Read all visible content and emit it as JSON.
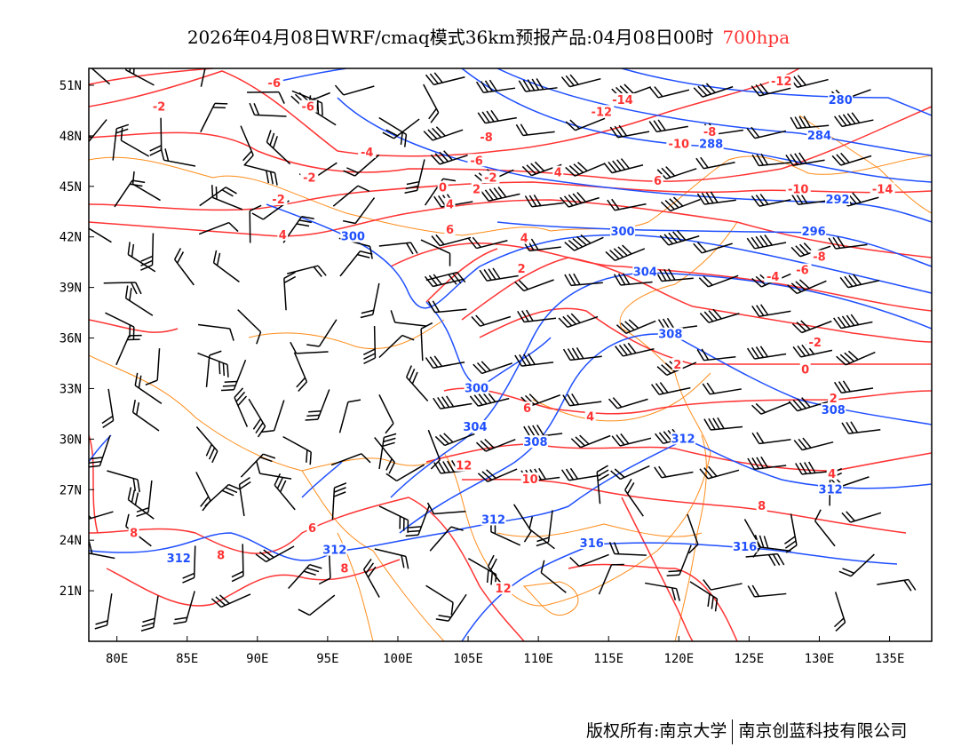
{
  "title": {
    "text": "2026年04月08日WRF/cmaq模式36km预报产品:04月08日00时",
    "level": "700hpa"
  },
  "footer": {
    "left": "版权所有:南京大学",
    "right": "南京创蓝科技有限公司"
  },
  "colors": {
    "height": "#1f4fff",
    "temperature": "#ff3333",
    "border": "#ff8c1a",
    "barb": "#000000"
  },
  "axes": {
    "lon_labels": [
      "80E",
      "85E",
      "90E",
      "95E",
      "100E",
      "105E",
      "110E",
      "115E",
      "120E",
      "125E",
      "130E",
      "135E"
    ],
    "lon_values": [
      80,
      85,
      90,
      95,
      100,
      105,
      110,
      115,
      120,
      125,
      130,
      135
    ],
    "lat_labels": [
      "21N",
      "24N",
      "27N",
      "30N",
      "33N",
      "36N",
      "39N",
      "42N",
      "45N",
      "48N",
      "51N"
    ],
    "lat_values": [
      21,
      24,
      27,
      30,
      33,
      36,
      39,
      42,
      45,
      48,
      51
    ],
    "lon_range": [
      78,
      138
    ],
    "lat_range": [
      18,
      52
    ]
  },
  "height_labels": [
    {
      "t": "280",
      "lon": 131.5,
      "lat": 50.1
    },
    {
      "t": "284",
      "lon": 130,
      "lat": 48
    },
    {
      "t": "288",
      "lon": 122.3,
      "lat": 47.5
    },
    {
      "t": "292",
      "lon": 131.3,
      "lat": 44.2
    },
    {
      "t": "296",
      "lon": 129.6,
      "lat": 42.3
    },
    {
      "t": "300",
      "lon": 96.8,
      "lat": 42
    },
    {
      "t": "300",
      "lon": 116,
      "lat": 42.3
    },
    {
      "t": "300",
      "lon": 105.6,
      "lat": 33
    },
    {
      "t": "304",
      "lon": 117.6,
      "lat": 39.9
    },
    {
      "t": "304",
      "lon": 105.5,
      "lat": 30.7
    },
    {
      "t": "308",
      "lon": 119.4,
      "lat": 36.2
    },
    {
      "t": "308",
      "lon": 109.8,
      "lat": 29.8
    },
    {
      "t": "308",
      "lon": 131,
      "lat": 31.7
    },
    {
      "t": "312",
      "lon": 120.3,
      "lat": 30
    },
    {
      "t": "312",
      "lon": 106.8,
      "lat": 25.2
    },
    {
      "t": "312",
      "lon": 130.8,
      "lat": 27
    },
    {
      "t": "312",
      "lon": 95.5,
      "lat": 23.4
    },
    {
      "t": "312",
      "lon": 84.4,
      "lat": 22.9
    },
    {
      "t": "316",
      "lon": 113.8,
      "lat": 23.8
    },
    {
      "t": "316",
      "lon": 124.7,
      "lat": 23.6
    }
  ],
  "temp_labels": [
    {
      "t": "-12",
      "lon": 127.3,
      "lat": 51.2
    },
    {
      "t": "-14",
      "lon": 116,
      "lat": 50.1
    },
    {
      "t": "-12",
      "lon": 114.5,
      "lat": 49.4
    },
    {
      "t": "-8",
      "lon": 122.2,
      "lat": 48.2
    },
    {
      "t": "-10",
      "lon": 120,
      "lat": 47.5
    },
    {
      "t": "-6",
      "lon": 91.2,
      "lat": 51.1
    },
    {
      "t": "-6",
      "lon": 93.6,
      "lat": 49.7
    },
    {
      "t": "-2",
      "lon": 83,
      "lat": 49.7
    },
    {
      "t": "-8",
      "lon": 106.3,
      "lat": 47.9
    },
    {
      "t": "-4",
      "lon": 97.8,
      "lat": 47
    },
    {
      "t": "-6",
      "lon": 105.6,
      "lat": 46.5
    },
    {
      "t": "-2",
      "lon": 106.6,
      "lat": 45.5
    },
    {
      "t": "4",
      "lon": 111.4,
      "lat": 45.8
    },
    {
      "t": "6",
      "lon": 118.5,
      "lat": 45.3
    },
    {
      "t": "-2",
      "lon": 93.7,
      "lat": 45.5
    },
    {
      "t": "0",
      "lon": 103.2,
      "lat": 44.9
    },
    {
      "t": "2",
      "lon": 105.6,
      "lat": 44.8
    },
    {
      "t": "4",
      "lon": 103.7,
      "lat": 43.9
    },
    {
      "t": "-2",
      "lon": 91.5,
      "lat": 44.2
    },
    {
      "t": "4",
      "lon": 91.8,
      "lat": 42.1
    },
    {
      "t": "6",
      "lon": 103.7,
      "lat": 42.4
    },
    {
      "t": "4",
      "lon": 109,
      "lat": 41.9
    },
    {
      "t": "2",
      "lon": 108.8,
      "lat": 40.1
    },
    {
      "t": "-10",
      "lon": 128.5,
      "lat": 44.8
    },
    {
      "t": "-14",
      "lon": 134.5,
      "lat": 44.8
    },
    {
      "t": "-8",
      "lon": 130,
      "lat": 40.8
    },
    {
      "t": "-4",
      "lon": 126.7,
      "lat": 39.6
    },
    {
      "t": "-6",
      "lon": 128.8,
      "lat": 40
    },
    {
      "t": "-2",
      "lon": 129.7,
      "lat": 35.7
    },
    {
      "t": "0",
      "lon": 129,
      "lat": 34.1
    },
    {
      "t": "2",
      "lon": 119.9,
      "lat": 34.4
    },
    {
      "t": "2",
      "lon": 131,
      "lat": 32.4
    },
    {
      "t": "6",
      "lon": 109.2,
      "lat": 31.8
    },
    {
      "t": "4",
      "lon": 113.7,
      "lat": 31.3
    },
    {
      "t": "12",
      "lon": 104.7,
      "lat": 28.4
    },
    {
      "t": "10",
      "lon": 109.4,
      "lat": 27.6
    },
    {
      "t": "4",
      "lon": 130.9,
      "lat": 27.9
    },
    {
      "t": "8",
      "lon": 125.9,
      "lat": 26
    },
    {
      "t": "6",
      "lon": 93.9,
      "lat": 24.7
    },
    {
      "t": "8",
      "lon": 81.2,
      "lat": 24.4
    },
    {
      "t": "8",
      "lon": 87.4,
      "lat": 23.1
    },
    {
      "t": "8",
      "lon": 96.2,
      "lat": 22.3
    },
    {
      "t": "12",
      "lon": 107.5,
      "lat": 21.1
    }
  ]
}
